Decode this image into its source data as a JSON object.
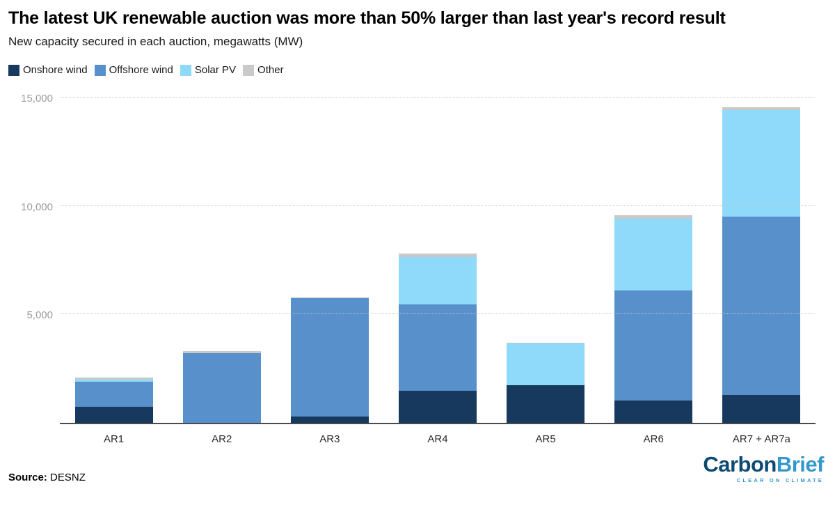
{
  "header": {
    "title": "The latest UK renewable auction was more than 50% larger than last year's record result",
    "subtitle": "New capacity secured in each auction, megawatts (MW)"
  },
  "footer": {
    "source_label": "Source:",
    "source_value": "DESNZ",
    "logo": {
      "part1": "Carbon",
      "part2": "Brief",
      "tagline": "CLEAR ON CLIMATE",
      "carbon_color": "#0c4a73",
      "brief_color": "#3399cc"
    }
  },
  "chart_data": {
    "type": "bar",
    "stacked": true,
    "title": "The latest UK renewable auction was more than 50% larger than last year's record result",
    "subtitle": "New capacity secured in each auction, megawatts (MW)",
    "categories": [
      "AR1",
      "AR2",
      "AR3",
      "AR4",
      "AR5",
      "AR6",
      "AR7 + AR7a"
    ],
    "series": [
      {
        "name": "Onshore wind",
        "color": "#16395d",
        "values": [
          750,
          0,
          280,
          1490,
          1720,
          1020,
          1300
        ]
      },
      {
        "name": "Offshore wind",
        "color": "#5890cb",
        "values": [
          1160,
          3200,
          5470,
          3960,
          0,
          5090,
          8220
        ]
      },
      {
        "name": "Solar PV",
        "color": "#8fdafb",
        "values": [
          70,
          0,
          0,
          2210,
          1930,
          3290,
          4900
        ]
      },
      {
        "name": "Other",
        "color": "#c9c9c9",
        "values": [
          120,
          100,
          30,
          140,
          50,
          180,
          130
        ]
      }
    ],
    "totals": [
      2100,
      3300,
      5780,
      7800,
      3700,
      9580,
      14550
    ],
    "xlabel": "",
    "ylabel": "",
    "yticks": [
      5000,
      10000,
      15000
    ],
    "ytick_labels": [
      "5,000",
      "10,000",
      "15,000"
    ],
    "ylim": [
      0,
      15350
    ],
    "grid": "dotted horizontal",
    "legend_position": "top-left"
  }
}
